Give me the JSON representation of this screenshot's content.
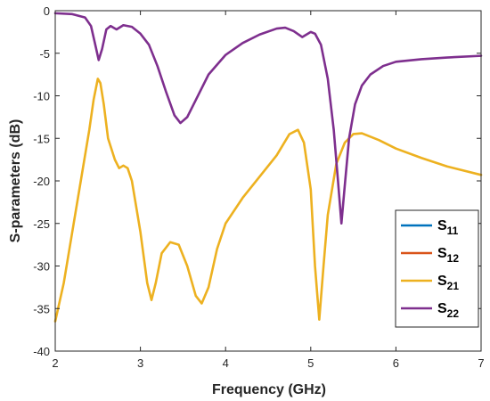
{
  "chart_data": {
    "type": "line",
    "title": "",
    "xlabel": "Frequency (GHz)",
    "ylabel": "S-parameters (dB)",
    "xlim": [
      2,
      7
    ],
    "ylim": [
      -40,
      0
    ],
    "x_ticks": [
      "2",
      "3",
      "4",
      "5",
      "6",
      "7"
    ],
    "y_ticks": [
      "0",
      "-5",
      "-10",
      "-15",
      "-20",
      "-25",
      "-30",
      "-35",
      "-40"
    ],
    "grid": false,
    "legend_position": "bottom-right",
    "series": [
      {
        "name": "S11",
        "label_main": "S",
        "label_sub": "11",
        "color": "#0072BD",
        "visible_line": false,
        "points": []
      },
      {
        "name": "S12",
        "label_main": "S",
        "label_sub": "12",
        "color": "#D95319",
        "visible_line": false,
        "points": []
      },
      {
        "name": "S21",
        "label_main": "S",
        "label_sub": "21",
        "color": "#EDB120",
        "visible_line": true,
        "points": [
          [
            2.0,
            -36.5
          ],
          [
            2.1,
            -32.0
          ],
          [
            2.2,
            -26.0
          ],
          [
            2.3,
            -20.0
          ],
          [
            2.4,
            -14.0
          ],
          [
            2.45,
            -10.5
          ],
          [
            2.5,
            -8.0
          ],
          [
            2.53,
            -8.5
          ],
          [
            2.57,
            -11.0
          ],
          [
            2.62,
            -15.0
          ],
          [
            2.7,
            -17.5
          ],
          [
            2.75,
            -18.5
          ],
          [
            2.8,
            -18.2
          ],
          [
            2.85,
            -18.5
          ],
          [
            2.9,
            -20.0
          ],
          [
            3.0,
            -26.0
          ],
          [
            3.08,
            -32.0
          ],
          [
            3.13,
            -34.0
          ],
          [
            3.18,
            -32.0
          ],
          [
            3.25,
            -28.5
          ],
          [
            3.35,
            -27.2
          ],
          [
            3.45,
            -27.5
          ],
          [
            3.55,
            -30.0
          ],
          [
            3.65,
            -33.5
          ],
          [
            3.72,
            -34.4
          ],
          [
            3.8,
            -32.5
          ],
          [
            3.9,
            -28.0
          ],
          [
            4.0,
            -25.0
          ],
          [
            4.2,
            -22.0
          ],
          [
            4.4,
            -19.5
          ],
          [
            4.6,
            -17.0
          ],
          [
            4.75,
            -14.5
          ],
          [
            4.85,
            -14.0
          ],
          [
            4.92,
            -15.5
          ],
          [
            5.0,
            -21.0
          ],
          [
            5.05,
            -30.0
          ],
          [
            5.1,
            -36.3
          ],
          [
            5.15,
            -30.0
          ],
          [
            5.2,
            -24.0
          ],
          [
            5.3,
            -18.0
          ],
          [
            5.4,
            -15.5
          ],
          [
            5.5,
            -14.5
          ],
          [
            5.6,
            -14.4
          ],
          [
            5.8,
            -15.2
          ],
          [
            6.0,
            -16.2
          ],
          [
            6.3,
            -17.3
          ],
          [
            6.6,
            -18.3
          ],
          [
            7.0,
            -19.3
          ]
        ]
      },
      {
        "name": "S22",
        "label_main": "S",
        "label_sub": "22",
        "color": "#7E2F8E",
        "visible_line": true,
        "points": [
          [
            2.0,
            -0.3
          ],
          [
            2.2,
            -0.4
          ],
          [
            2.35,
            -0.8
          ],
          [
            2.42,
            -1.8
          ],
          [
            2.47,
            -4.0
          ],
          [
            2.51,
            -5.8
          ],
          [
            2.55,
            -4.5
          ],
          [
            2.6,
            -2.2
          ],
          [
            2.65,
            -1.8
          ],
          [
            2.72,
            -2.2
          ],
          [
            2.8,
            -1.7
          ],
          [
            2.9,
            -1.9
          ],
          [
            3.0,
            -2.7
          ],
          [
            3.1,
            -4.0
          ],
          [
            3.2,
            -6.5
          ],
          [
            3.3,
            -9.5
          ],
          [
            3.4,
            -12.3
          ],
          [
            3.47,
            -13.2
          ],
          [
            3.55,
            -12.5
          ],
          [
            3.65,
            -10.5
          ],
          [
            3.8,
            -7.5
          ],
          [
            4.0,
            -5.2
          ],
          [
            4.2,
            -3.8
          ],
          [
            4.4,
            -2.8
          ],
          [
            4.6,
            -2.1
          ],
          [
            4.7,
            -2.0
          ],
          [
            4.8,
            -2.4
          ],
          [
            4.9,
            -3.1
          ],
          [
            5.0,
            -2.5
          ],
          [
            5.05,
            -2.7
          ],
          [
            5.12,
            -4.0
          ],
          [
            5.2,
            -8.0
          ],
          [
            5.27,
            -14.0
          ],
          [
            5.32,
            -20.0
          ],
          [
            5.36,
            -25.0
          ],
          [
            5.4,
            -20.5
          ],
          [
            5.45,
            -15.0
          ],
          [
            5.52,
            -11.0
          ],
          [
            5.6,
            -8.8
          ],
          [
            5.7,
            -7.5
          ],
          [
            5.85,
            -6.5
          ],
          [
            6.0,
            -6.0
          ],
          [
            6.3,
            -5.7
          ],
          [
            6.6,
            -5.5
          ],
          [
            7.0,
            -5.3
          ]
        ]
      }
    ]
  }
}
